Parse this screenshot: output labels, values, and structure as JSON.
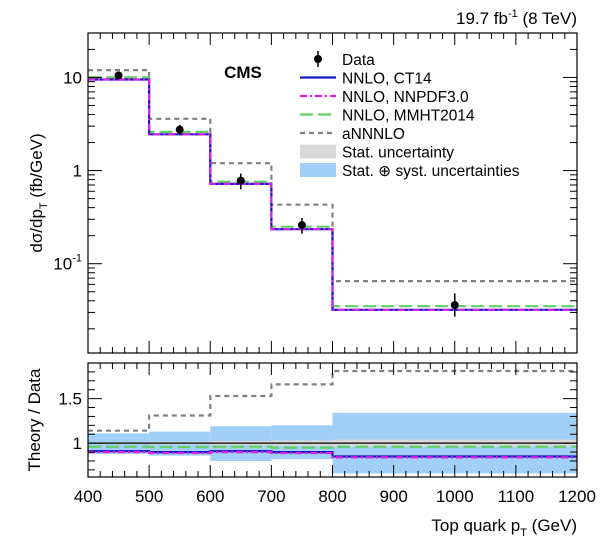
{
  "header": {
    "lumi_main": "19.7 fb",
    "lumi_exp": "-1",
    "lumi_tail": " (8 TeV)"
  },
  "experiment": "CMS",
  "colors": {
    "data": "#000000",
    "ct14": "#1515c8",
    "nnpdf": "#e020e0",
    "mmht": "#60d060",
    "annnlo": "#808080",
    "stat_band": "#d9d9d9",
    "syst_band": "#a0d0f8"
  },
  "legend": [
    {
      "key": "data",
      "label": "Data",
      "style": "marker"
    },
    {
      "key": "ct14",
      "label": "NNLO, CT14",
      "style": "solid"
    },
    {
      "key": "nnpdf",
      "label": "NNLO, NNPDF3.0",
      "style": "dashdot"
    },
    {
      "key": "mmht",
      "label": "NNLO, MMHT2014",
      "style": "longdash"
    },
    {
      "key": "annnlo",
      "label": "aNNNLO",
      "style": "dashed"
    },
    {
      "key": "stat",
      "label": "Stat. uncertainty",
      "style": "box"
    },
    {
      "key": "syst",
      "label": "Stat. ⊕ syst. uncertainties",
      "style": "box"
    }
  ],
  "chart_data": [
    {
      "type": "line",
      "panel": "main",
      "ylabel_main": "dσ/dp",
      "ylabel_sub": "T",
      "ylabel_tail": " (fb/GeV)",
      "yscale": "log",
      "ylim": [
        0.011,
        30
      ],
      "xlim": [
        400,
        1200
      ],
      "yticks": [
        {
          "value": 10,
          "mantissa": "10",
          "exponent": ""
        },
        {
          "value": 1,
          "mantissa": "1",
          "exponent": ""
        },
        {
          "value": 0.1,
          "mantissa": "10",
          "exponent": "-1"
        }
      ],
      "bin_edges": [
        400,
        500,
        600,
        700,
        800,
        1200
      ],
      "data_points": [
        {
          "x": 450,
          "y": 10.5,
          "err_low": 0.9,
          "err_high": 0.9
        },
        {
          "x": 550,
          "y": 2.75,
          "err_low": 0.35,
          "err_high": 0.35
        },
        {
          "x": 650,
          "y": 0.78,
          "err_low": 0.15,
          "err_high": 0.15
        },
        {
          "x": 750,
          "y": 0.26,
          "err_low": 0.05,
          "err_high": 0.05
        },
        {
          "x": 1000,
          "y": 0.036,
          "err_low": 0.009,
          "err_high": 0.012
        }
      ],
      "series": [
        {
          "key": "ct14",
          "name": "NNLO, CT14",
          "values": [
            9.5,
            2.45,
            0.72,
            0.235,
            0.032
          ]
        },
        {
          "key": "nnpdf",
          "name": "NNLO, NNPDF3.0",
          "values": [
            9.5,
            2.45,
            0.72,
            0.235,
            0.032
          ]
        },
        {
          "key": "mmht",
          "name": "NNLO, MMHT2014",
          "values": [
            10.0,
            2.6,
            0.76,
            0.25,
            0.035
          ]
        },
        {
          "key": "annnlo",
          "name": "aNNNLO",
          "values": [
            12.0,
            3.6,
            1.2,
            0.43,
            0.065
          ]
        }
      ]
    },
    {
      "type": "line",
      "panel": "ratio",
      "ylabel": "Theory / Data",
      "ylim": [
        0.62,
        1.9
      ],
      "xlim": [
        400,
        1200
      ],
      "yticks": [
        1,
        1.5
      ],
      "ytick_labels": [
        "1",
        "1.5"
      ],
      "xticks": [
        400,
        500,
        600,
        700,
        800,
        900,
        1000,
        1100,
        1200
      ],
      "xlabel_main": "Top quark p",
      "xlabel_sub": "T",
      "xlabel_tail": " (GeV)",
      "bin_edges": [
        400,
        500,
        600,
        700,
        800,
        1200
      ],
      "bands": [
        {
          "key": "syst",
          "name": "Stat. ⊕ syst. uncertainties",
          "low": [
            0.88,
            0.86,
            0.8,
            0.82,
            0.66
          ],
          "high": [
            1.11,
            1.13,
            1.19,
            1.2,
            1.34
          ]
        },
        {
          "key": "stat",
          "name": "Stat. uncertainty",
          "low": [
            0.99,
            0.985,
            0.975,
            0.97,
            0.96
          ],
          "high": [
            1.01,
            1.015,
            1.025,
            1.03,
            1.04
          ]
        }
      ],
      "series": [
        {
          "key": "ct14",
          "name": "NNLO, CT14",
          "values": [
            0.91,
            0.9,
            0.91,
            0.9,
            0.85
          ]
        },
        {
          "key": "nnpdf",
          "name": "NNLO, NNPDF3.0",
          "values": [
            0.9,
            0.89,
            0.9,
            0.89,
            0.84
          ]
        },
        {
          "key": "mmht",
          "name": "NNLO, MMHT2014",
          "values": [
            0.96,
            0.955,
            0.96,
            0.95,
            0.96
          ]
        },
        {
          "key": "annnlo",
          "name": "aNNNLO",
          "values": [
            1.14,
            1.31,
            1.53,
            1.66,
            1.81
          ]
        }
      ]
    }
  ]
}
